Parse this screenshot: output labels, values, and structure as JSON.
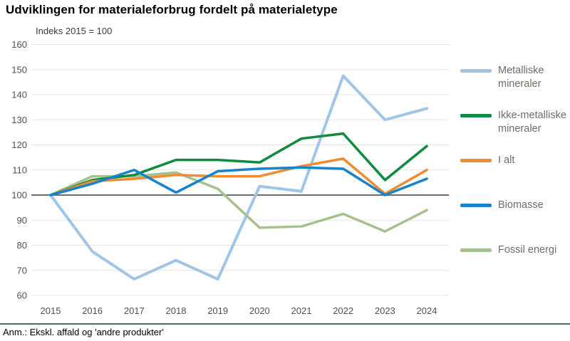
{
  "header": {
    "title": "Udviklingen for materialeforbrug fordelt på materialetype",
    "subtitle": "Indeks 2015 = 100"
  },
  "footer": {
    "note": "Anm.: Ekskl. affald og 'andre produkter'"
  },
  "palette": {
    "grid": "#e6e6e1",
    "baseline": "#6f6e66",
    "tick_text": "#52514a",
    "legend_text": "#6e6d66",
    "footer_rule": "#4a6a77"
  },
  "chart_data": {
    "type": "line",
    "title": "Udviklingen for materialeforbrug fordelt på materialetype",
    "subtitle": "Indeks 2015 = 100",
    "x": [
      2015,
      2016,
      2017,
      2018,
      2019,
      2020,
      2021,
      2022,
      2023,
      2024
    ],
    "series": [
      {
        "name": "Metalliske mineraler",
        "color": "#9fc5e8",
        "values": [
          100,
          77.5,
          66.5,
          74,
          66.5,
          103.5,
          101.5,
          147.5,
          130,
          134.5
        ]
      },
      {
        "name": "Ikke-metalliske mineraler",
        "color": "#0e8b3e",
        "values": [
          100,
          106,
          108,
          114,
          114,
          113,
          122.5,
          124.5,
          106,
          119.5
        ]
      },
      {
        "name": "I alt",
        "color": "#ef8c31",
        "values": [
          100,
          105.5,
          106.5,
          108,
          107.5,
          107.5,
          111.5,
          114.5,
          100.5,
          110
        ]
      },
      {
        "name": "Biomasse",
        "color": "#1583d0",
        "values": [
          100,
          104.5,
          110,
          101,
          109.5,
          110.5,
          111,
          110.5,
          100,
          106.5
        ]
      },
      {
        "name": "Fossil energi",
        "color": "#a6c28c",
        "values": [
          100,
          107.5,
          107.5,
          109,
          102.5,
          87,
          87.5,
          92.5,
          85.5,
          94
        ]
      }
    ],
    "draw_order": [
      0,
      4,
      1,
      2,
      3
    ],
    "ylim": [
      60,
      160
    ],
    "ytick_step": 10,
    "baseline_value": 100,
    "grid": true,
    "legend_position": "right"
  }
}
